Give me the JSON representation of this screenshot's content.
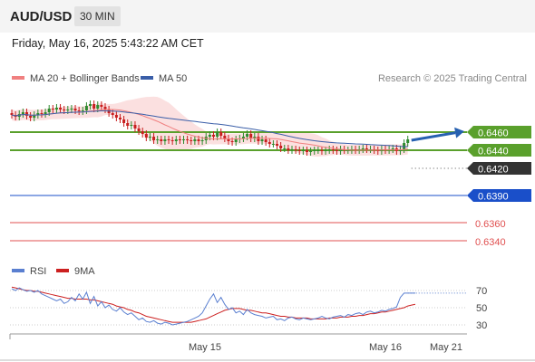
{
  "header": {
    "symbol": "AUD/USD",
    "timeframe": "30 MIN"
  },
  "datetime": "Friday, May 16, 2025 5:43:22 AM CET",
  "legend": {
    "bollinger": "MA 20 + Bollinger Bands",
    "ma50": "MA 50",
    "copyright": "Research © 2025 Trading Central"
  },
  "colors": {
    "bull_candle": "#2e8b2e",
    "bear_candle": "#c81e1e",
    "bollinger_fill": "#fbe0e0",
    "ma20": "#f08080",
    "ma50": "#3a5ea8",
    "resistance": "#5aa02c",
    "current": "#333333",
    "support_blue": "#1a4fc9",
    "support_red": "#e05050",
    "arrow": "#2660b0",
    "rsi": "#5a7fd0",
    "rsi_ma": "#cc2020"
  },
  "chart_data": [
    {
      "type": "candlestick",
      "ylim": [
        0.633,
        0.649
      ],
      "x_ticks": [
        "May 15",
        "May 16",
        "May 21"
      ],
      "close": [
        0.6479,
        0.6477,
        0.648,
        0.6482,
        0.6478,
        0.6476,
        0.6479,
        0.6481,
        0.648,
        0.6482,
        0.6486,
        0.6485,
        0.6487,
        0.6485,
        0.6484,
        0.6485,
        0.6486,
        0.6484,
        0.6483,
        0.6484,
        0.6489,
        0.6491,
        0.6486,
        0.649,
        0.6488,
        0.6485,
        0.6481,
        0.6479,
        0.6476,
        0.6474,
        0.647,
        0.6467,
        0.6468,
        0.6464,
        0.6461,
        0.6458,
        0.6454,
        0.6455,
        0.6451,
        0.6452,
        0.645,
        0.6452,
        0.6451,
        0.645,
        0.6452,
        0.6451,
        0.6452,
        0.6451,
        0.645,
        0.6452,
        0.645,
        0.6451,
        0.6455,
        0.6457,
        0.6455,
        0.646,
        0.6456,
        0.6453,
        0.645,
        0.6449,
        0.6452,
        0.6453,
        0.6455,
        0.6458,
        0.6453,
        0.6455,
        0.645,
        0.6452,
        0.6449,
        0.6447,
        0.6447,
        0.6445,
        0.6442,
        0.6442,
        0.644,
        0.6441,
        0.644,
        0.6439,
        0.644,
        0.6438,
        0.6439,
        0.644,
        0.644,
        0.6439,
        0.644,
        0.6441,
        0.644,
        0.6439,
        0.6441,
        0.644,
        0.644,
        0.6441,
        0.644,
        0.6441,
        0.6442,
        0.6441,
        0.6441,
        0.644,
        0.6439,
        0.6441,
        0.644,
        0.6441,
        0.6442,
        0.6439,
        0.6441,
        0.6448,
        0.6452
      ],
      "levels": [
        {
          "value": "0.6460",
          "kind": "resistance"
        },
        {
          "value": "0.6440",
          "kind": "resistance"
        },
        {
          "value": "0.6420",
          "kind": "current"
        },
        {
          "value": "0.6390",
          "kind": "support_blue"
        },
        {
          "value": "0.6360",
          "kind": "support_red"
        },
        {
          "value": "0.6340",
          "kind": "support_red"
        }
      ],
      "forecast_arrow": {
        "from": 0.6451,
        "to": 0.6461
      }
    },
    {
      "type": "line",
      "title": "RSI",
      "series": [
        {
          "name": "RSI",
          "values": [
            72,
            70,
            73,
            71,
            69,
            70,
            68,
            70,
            66,
            64,
            62,
            60,
            58,
            60,
            55,
            57,
            62,
            58,
            66,
            60,
            68,
            55,
            63,
            52,
            57,
            50,
            53,
            48,
            46,
            50,
            45,
            42,
            44,
            40,
            36,
            38,
            34,
            33,
            35,
            32,
            31,
            33,
            32,
            30,
            31,
            32,
            33,
            34,
            36,
            38,
            40,
            44,
            52,
            60,
            66,
            56,
            62,
            54,
            48,
            50,
            44,
            46,
            42,
            48,
            44,
            42,
            41,
            40,
            38,
            39,
            40,
            36,
            37,
            35,
            38,
            39,
            37,
            36,
            38,
            37,
            36,
            37,
            38,
            40,
            38,
            37,
            39,
            40,
            41,
            39,
            42,
            41,
            43,
            44,
            42,
            45,
            46,
            44,
            45,
            47,
            46,
            48,
            49,
            51,
            62,
            67,
            67,
            67,
            67
          ]
        },
        {
          "name": "9MA",
          "values": [
            74,
            73,
            72,
            71,
            70,
            70,
            69,
            69,
            68,
            67,
            66,
            65,
            64,
            63,
            62,
            61,
            61,
            60,
            60,
            60,
            60,
            59,
            59,
            58,
            57,
            56,
            55,
            54,
            52,
            51,
            50,
            48,
            47,
            45,
            44,
            42,
            40,
            39,
            38,
            37,
            36,
            35,
            34,
            33,
            33,
            33,
            33,
            33,
            33,
            34,
            35,
            36,
            37,
            39,
            41,
            43,
            45,
            47,
            48,
            49,
            49,
            49,
            48,
            47,
            47,
            46,
            45,
            44,
            44,
            43,
            42,
            41,
            40,
            40,
            39,
            39,
            38,
            38,
            38,
            38,
            37,
            37,
            37,
            37,
            37,
            38,
            38,
            38,
            39,
            39,
            39,
            40,
            40,
            41,
            41,
            42,
            43,
            43,
            44,
            45,
            45,
            46,
            47,
            48,
            49,
            50,
            52,
            53,
            54
          ]
        }
      ],
      "y_ticks": [
        "70",
        "50",
        "30"
      ],
      "ylim": [
        20,
        80
      ]
    }
  ]
}
